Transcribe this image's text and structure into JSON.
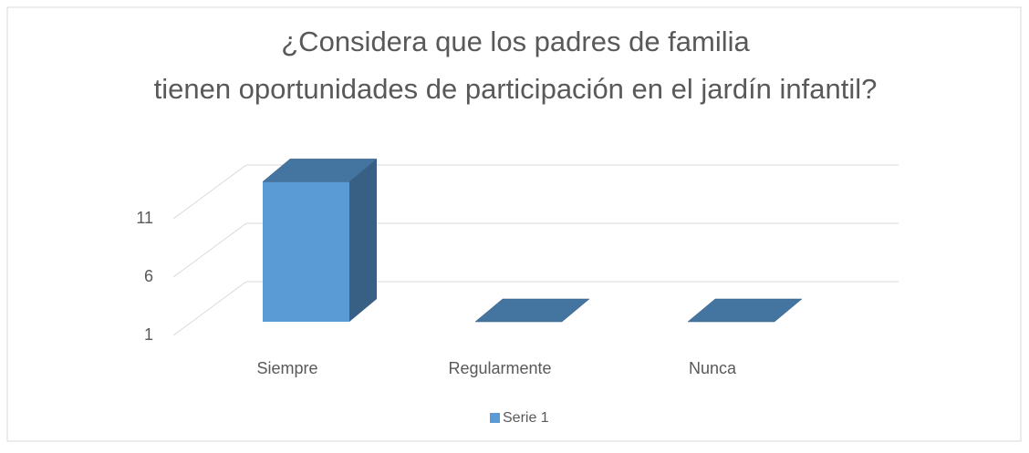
{
  "chart_data": {
    "type": "bar3d",
    "title": "¿Considera que los padres de familia tienen oportunidades de participación en el jardín infantil?",
    "categories": [
      "Siempre",
      "Regularmente",
      "Nunca"
    ],
    "series": [
      {
        "name": "Serie 1",
        "color": "#5b9bd5",
        "values": [
          13,
          1,
          1
        ]
      }
    ],
    "ylim": [
      1,
      11
    ],
    "yticks": [
      1,
      6,
      11
    ],
    "grid": true,
    "legend": "bottom"
  }
}
